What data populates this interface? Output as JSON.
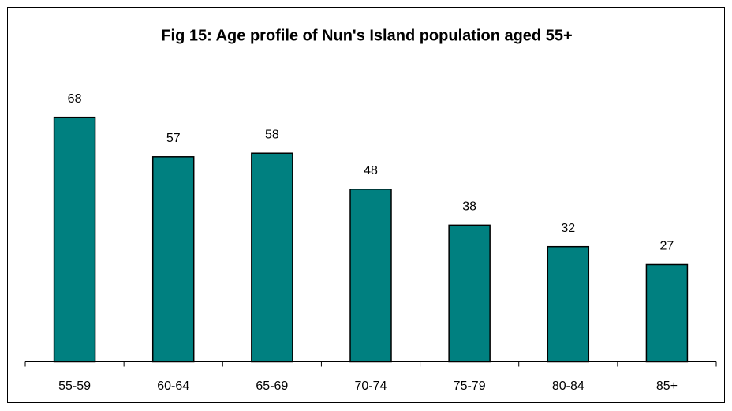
{
  "chart_data": {
    "type": "bar",
    "title": "Fig 15: Age profile of Nun's Island population aged 55+",
    "categories": [
      "55-59",
      "60-64",
      "65-69",
      "70-74",
      "75-79",
      "80-84",
      "85+"
    ],
    "values": [
      68,
      57,
      58,
      48,
      38,
      32,
      27
    ],
    "color": "#008080",
    "ylim": [
      0,
      80
    ]
  }
}
